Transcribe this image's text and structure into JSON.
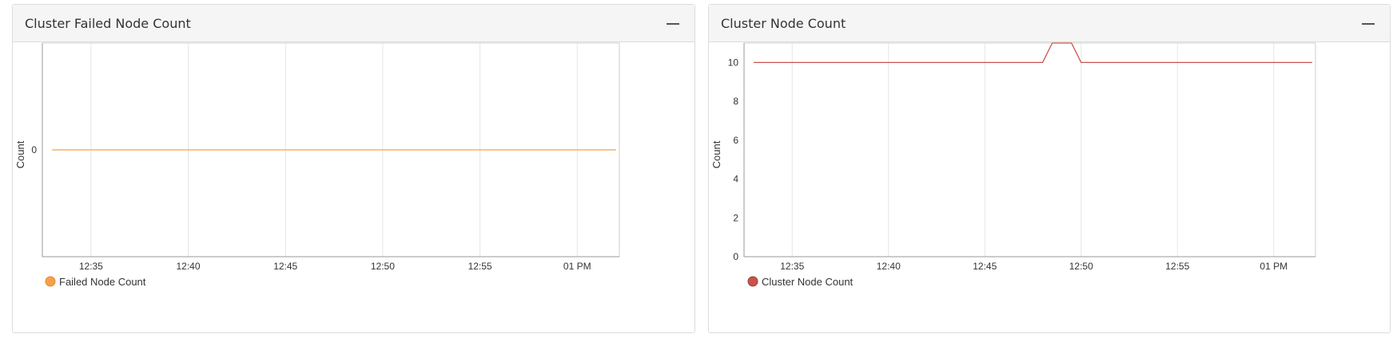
{
  "panels": [
    {
      "title": "Cluster Failed Node Count",
      "collapse_icon": "minus-icon"
    },
    {
      "title": "Cluster Node Count",
      "collapse_icon": "minus-icon"
    }
  ],
  "chart_data": [
    {
      "type": "line",
      "title": "Cluster Failed Node Count",
      "xlabel": "",
      "ylabel": "Count",
      "x_ticks": [
        "12:35",
        "12:40",
        "12:45",
        "12:50",
        "12:55",
        "01 PM"
      ],
      "y_ticks": [
        0
      ],
      "xlim": [
        "12:32:30",
        "13:02:10"
      ],
      "ylim": [
        -1,
        1
      ],
      "grid": "vertical",
      "legend": "bottom-left",
      "series": [
        {
          "name": "Failed Node Count",
          "color": "#f7a04b",
          "x": [
            "12:33",
            "13:02"
          ],
          "values": [
            0,
            0
          ]
        }
      ]
    },
    {
      "type": "line",
      "title": "Cluster Node Count",
      "xlabel": "",
      "ylabel": "Count",
      "x_ticks": [
        "12:35",
        "12:40",
        "12:45",
        "12:50",
        "12:55",
        "01 PM"
      ],
      "y_ticks": [
        0,
        2,
        4,
        6,
        8,
        10
      ],
      "xlim": [
        "12:32:30",
        "13:02:10"
      ],
      "ylim": [
        0,
        11
      ],
      "grid": "vertical",
      "legend": "bottom-left",
      "series": [
        {
          "name": "Cluster Node Count",
          "color": "#c9534b",
          "x": [
            "12:33",
            "12:48",
            "12:48:30",
            "12:49:30",
            "12:50",
            "13:02"
          ],
          "values": [
            10,
            10,
            11,
            11,
            10,
            10
          ]
        }
      ]
    }
  ]
}
